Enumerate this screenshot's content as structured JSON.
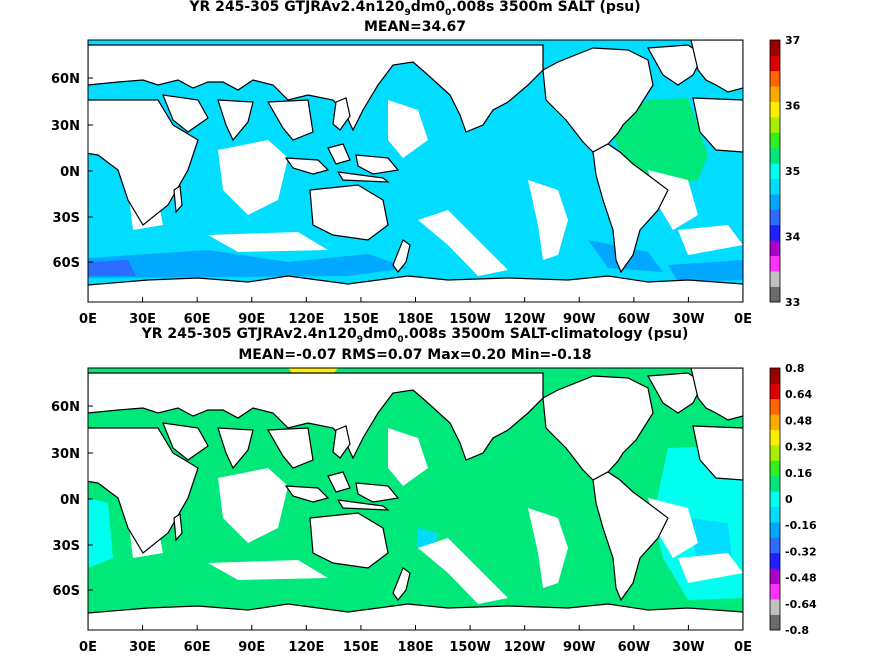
{
  "panels": [
    {
      "title_pre": "YR 245-305 GTJRAv2.4n120",
      "title_sub1": "9",
      "title_mid": "dm0",
      "title_sub2": "0",
      "title_post": ".008s 3500m SALT (psu)",
      "subtitle": "MEAN=34.67"
    },
    {
      "title_pre": "YR 245-305 GTJRAv2.4n120",
      "title_sub1": "9",
      "title_mid": "dm0",
      "title_sub2": "0",
      "title_post": ".008s 3500m SALT-climatology (psu)",
      "subtitle": "MEAN=-0.07   RMS=0.07   Max=0.20   Min=-0.18"
    }
  ],
  "x_ticks": [
    "0E",
    "30E",
    "60E",
    "90E",
    "120E",
    "150E",
    "180E",
    "150W",
    "120W",
    "90W",
    "60W",
    "30W",
    "0E"
  ],
  "y_ticks": [
    "60N",
    "30N",
    "0N",
    "30S",
    "60S"
  ],
  "colorbars": [
    {
      "labels": [
        "37",
        "36",
        "35",
        "34",
        "33"
      ]
    },
    {
      "labels": [
        "0.8",
        "0.64",
        "0.48",
        "0.32",
        "0.16",
        "0",
        "-0.16",
        "-0.32",
        "-0.48",
        "-0.64",
        "-0.8"
      ]
    }
  ],
  "colormap": [
    "#6b6b6b",
    "#c0c0c0",
    "#ff33ff",
    "#a800c8",
    "#2020ff",
    "#2c6cff",
    "#00a8ff",
    "#00ddff",
    "#00ffee",
    "#00e87a",
    "#33ee22",
    "#aaee00",
    "#ffee00",
    "#ffaa00",
    "#ff6600",
    "#dd0000",
    "#990000"
  ],
  "chart_data": [
    {
      "type": "map",
      "title": "YR 245-305 GTJRAv2.4n120_9dm0_0.008s 3500m SALT (psu)",
      "subtitle": "MEAN=34.67",
      "colorbar_range": [
        33,
        37
      ],
      "colorbar_labels": [
        37,
        36,
        35,
        34,
        33
      ],
      "mean": 34.67
    },
    {
      "type": "map",
      "title": "YR 245-305 GTJRAv2.4n120_9dm0_0.008s 3500m SALT-climatology (psu)",
      "subtitle": "MEAN=-0.07 RMS=0.07 Max=0.20 Min=-0.18",
      "colorbar_range": [
        -0.8,
        0.8
      ],
      "colorbar_labels": [
        0.8,
        0.64,
        0.48,
        0.32,
        0.16,
        0,
        -0.16,
        -0.32,
        -0.48,
        -0.64,
        -0.8
      ],
      "mean": -0.07,
      "rms": 0.07,
      "max": 0.2,
      "min": -0.18
    }
  ]
}
